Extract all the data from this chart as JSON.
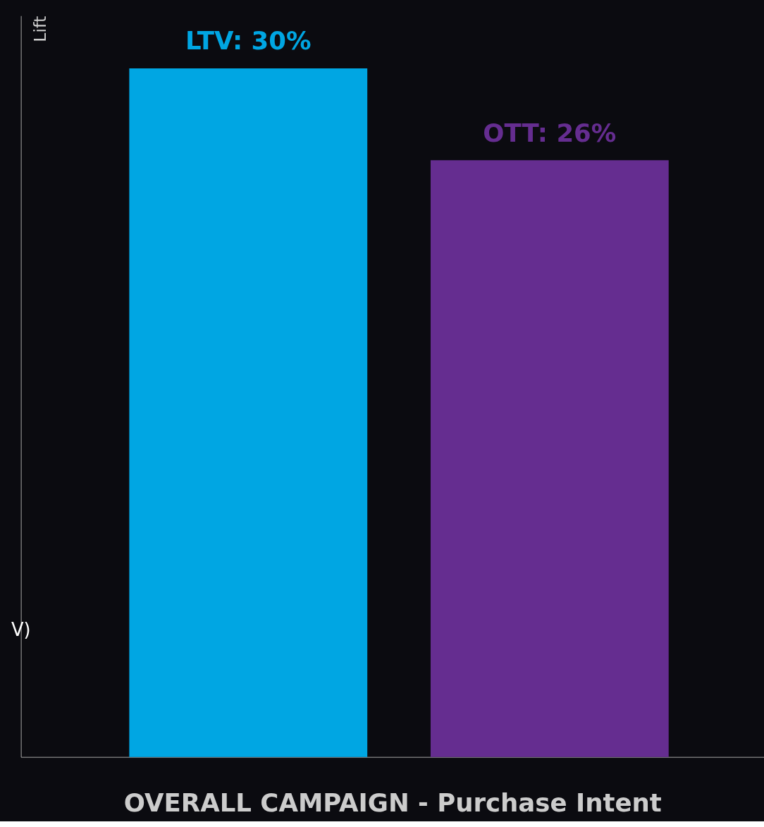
{
  "chart_data": {
    "type": "bar",
    "xlabel": "OVERALL CAMPAIGN   -  Purchase Intent",
    "ylabel": "Lift",
    "categories": [
      null,
      null
    ],
    "values": [
      30,
      26
    ],
    "colors": [
      "#00a6e3",
      "#652d90"
    ],
    "value_labels": [
      "LTV: 30%",
      "OTT:  26%"
    ],
    "ylim": [
      0,
      32.3
    ],
    "tick_labels": false,
    "grid": false,
    "annotations": [
      {
        "text": "V)"
      }
    ]
  }
}
